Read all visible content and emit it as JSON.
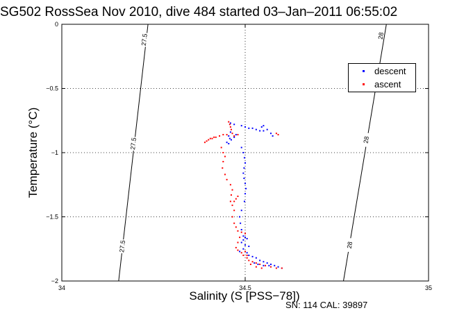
{
  "figure": {
    "title": "SG502 RossSea Nov 2010, dive 484 started 03–Jan–2011 06:55:02",
    "caption": "SN: 114  CAL: 39897"
  },
  "chart_data": {
    "type": "scatter",
    "title": "SG502 RossSea Nov 2010, dive 484 started 03–Jan–2011 06:55:02",
    "xlabel": "Salinity (S [PSS−78])",
    "ylabel": "Temperature (°C)",
    "xlim": [
      34,
      35
    ],
    "ylim": [
      -2,
      0
    ],
    "xticks": [
      34,
      34.5,
      35
    ],
    "xtick_labels": [
      "34",
      "34.5",
      "35"
    ],
    "yticks": [
      0,
      -0.5,
      -1,
      -1.5,
      -2
    ],
    "ytick_labels": [
      "0",
      "−0.5",
      "−1",
      "−1.5",
      "−2"
    ],
    "grid": true,
    "legend_position": "top-right",
    "series": [
      {
        "name": "descent",
        "color": "#0000ff",
        "points": [
          [
            34.46,
            -0.77
          ],
          [
            34.47,
            -0.78
          ],
          [
            34.49,
            -0.79
          ],
          [
            34.5,
            -0.8
          ],
          [
            34.51,
            -0.81
          ],
          [
            34.52,
            -0.81
          ],
          [
            34.53,
            -0.82
          ],
          [
            34.54,
            -0.83
          ],
          [
            34.55,
            -0.83
          ],
          [
            34.56,
            -0.82
          ],
          [
            34.57,
            -0.85
          ],
          [
            34.575,
            -0.87
          ],
          [
            34.545,
            -0.8
          ],
          [
            34.55,
            -0.79
          ],
          [
            34.46,
            -0.84
          ],
          [
            34.455,
            -0.87
          ],
          [
            34.458,
            -0.89
          ],
          [
            34.462,
            -0.9
          ],
          [
            34.45,
            -0.92
          ],
          [
            34.455,
            -0.93
          ],
          [
            34.47,
            -0.88
          ],
          [
            34.475,
            -0.86
          ],
          [
            34.49,
            -0.96
          ],
          [
            34.495,
            -1.0
          ],
          [
            34.498,
            -1.04
          ],
          [
            34.5,
            -1.08
          ],
          [
            34.497,
            -1.12
          ],
          [
            34.495,
            -1.16
          ],
          [
            34.497,
            -1.2
          ],
          [
            34.5,
            -1.24
          ],
          [
            34.502,
            -1.28
          ],
          [
            34.5,
            -1.32
          ],
          [
            34.498,
            -1.38
          ],
          [
            34.49,
            -1.45
          ],
          [
            34.485,
            -1.5
          ],
          [
            34.487,
            -1.55
          ],
          [
            34.49,
            -1.6
          ],
          [
            34.495,
            -1.65
          ],
          [
            34.5,
            -1.66
          ],
          [
            34.505,
            -1.67
          ],
          [
            34.495,
            -1.68
          ],
          [
            34.49,
            -1.7
          ],
          [
            34.5,
            -1.72
          ],
          [
            34.51,
            -1.73
          ],
          [
            34.495,
            -1.75
          ],
          [
            34.485,
            -1.77
          ],
          [
            34.505,
            -1.78
          ],
          [
            34.51,
            -1.8
          ],
          [
            34.52,
            -1.81
          ],
          [
            34.53,
            -1.82
          ],
          [
            34.54,
            -1.84
          ],
          [
            34.55,
            -1.85
          ],
          [
            34.56,
            -1.86
          ],
          [
            34.57,
            -1.87
          ],
          [
            34.58,
            -1.88
          ],
          [
            34.59,
            -1.89
          ],
          [
            34.6,
            -1.9
          ],
          [
            34.525,
            -1.86
          ],
          [
            34.535,
            -1.87
          ],
          [
            34.55,
            -1.88
          ],
          [
            34.565,
            -1.88
          ]
        ]
      },
      {
        "name": "ascent",
        "color": "#ff0000",
        "points": [
          [
            34.455,
            -0.76
          ],
          [
            34.458,
            -0.78
          ],
          [
            34.46,
            -0.8
          ],
          [
            34.462,
            -0.82
          ],
          [
            34.465,
            -0.85
          ],
          [
            34.44,
            -0.86
          ],
          [
            34.43,
            -0.87
          ],
          [
            34.45,
            -0.86
          ],
          [
            34.47,
            -0.87
          ],
          [
            34.48,
            -0.86
          ],
          [
            34.42,
            -0.88
          ],
          [
            34.41,
            -0.89
          ],
          [
            34.4,
            -0.9
          ],
          [
            34.395,
            -0.91
          ],
          [
            34.39,
            -0.92
          ],
          [
            34.405,
            -0.89
          ],
          [
            34.415,
            -0.88
          ],
          [
            34.59,
            -0.86
          ],
          [
            34.585,
            -0.85
          ],
          [
            34.435,
            -0.96
          ],
          [
            34.44,
            -1.0
          ],
          [
            34.445,
            -1.03
          ],
          [
            34.44,
            -1.07
          ],
          [
            34.438,
            -1.12
          ],
          [
            34.445,
            -1.17
          ],
          [
            34.45,
            -1.21
          ],
          [
            34.46,
            -1.25
          ],
          [
            34.465,
            -1.29
          ],
          [
            34.462,
            -1.33
          ],
          [
            34.46,
            -1.38
          ],
          [
            34.465,
            -1.41
          ],
          [
            34.47,
            -1.38
          ],
          [
            34.475,
            -1.36
          ],
          [
            34.48,
            -1.34
          ],
          [
            34.47,
            -1.45
          ],
          [
            34.465,
            -1.5
          ],
          [
            34.47,
            -1.55
          ],
          [
            34.475,
            -1.58
          ],
          [
            34.48,
            -1.61
          ],
          [
            34.49,
            -1.62
          ],
          [
            34.5,
            -1.63
          ],
          [
            34.485,
            -1.66
          ],
          [
            34.48,
            -1.7
          ],
          [
            34.475,
            -1.74
          ],
          [
            34.48,
            -1.76
          ],
          [
            34.49,
            -1.78
          ],
          [
            34.495,
            -1.8
          ],
          [
            34.505,
            -1.82
          ],
          [
            34.51,
            -1.84
          ],
          [
            34.52,
            -1.85
          ],
          [
            34.53,
            -1.86
          ],
          [
            34.54,
            -1.87
          ],
          [
            34.555,
            -1.88
          ],
          [
            34.57,
            -1.89
          ],
          [
            34.585,
            -1.9
          ],
          [
            34.6,
            -1.9
          ],
          [
            34.515,
            -1.87
          ],
          [
            34.53,
            -1.89
          ],
          [
            34.545,
            -1.9
          ],
          [
            34.505,
            -1.8
          ],
          [
            34.5,
            -1.77
          ]
        ]
      }
    ],
    "isopycnals": [
      {
        "label": "27.5",
        "points": [
          [
            34.155,
            -2.0
          ],
          [
            34.235,
            0.0
          ]
        ],
        "label_at": [
          [
            34.225,
            -0.12
          ],
          [
            34.195,
            -0.93
          ],
          [
            34.165,
            -1.73
          ]
        ]
      },
      {
        "label": "28",
        "points": [
          [
            34.768,
            -2.0
          ],
          [
            34.885,
            0.0
          ]
        ],
        "label_at": [
          [
            34.87,
            -0.09
          ],
          [
            34.83,
            -0.9
          ],
          [
            34.785,
            -1.72
          ]
        ]
      }
    ]
  }
}
